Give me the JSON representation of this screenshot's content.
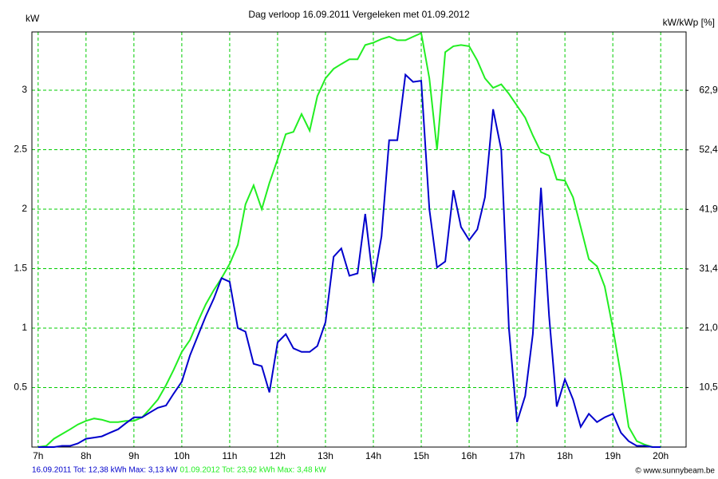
{
  "chart_data": {
    "type": "line",
    "title": "Dag  verloop 16.09.2011   Vergeleken met 01.09.2012",
    "y_label": "kW",
    "y2_label": "kW/kWp [%]",
    "credit": "© www.sunnybeam.be",
    "grid": true,
    "grid_color": "#00cc00",
    "xlim": [
      6.87,
      20.53
    ],
    "ylim": [
      0,
      3.49
    ],
    "y2lim": [
      0,
      73.2
    ],
    "xticks": [
      {
        "value": 7,
        "label": "7h"
      },
      {
        "value": 8,
        "label": "8h"
      },
      {
        "value": 9,
        "label": "9h"
      },
      {
        "value": 10,
        "label": "10h"
      },
      {
        "value": 11,
        "label": "11h"
      },
      {
        "value": 12,
        "label": "12h"
      },
      {
        "value": 13,
        "label": "13h"
      },
      {
        "value": 14,
        "label": "14h"
      },
      {
        "value": 15,
        "label": "15h"
      },
      {
        "value": 16,
        "label": "16h"
      },
      {
        "value": 17,
        "label": "17h"
      },
      {
        "value": 18,
        "label": "18h"
      },
      {
        "value": 19,
        "label": "19h"
      },
      {
        "value": 20,
        "label": "20h"
      }
    ],
    "yticks": [
      0.5,
      1,
      1.5,
      2,
      2.5,
      3
    ],
    "y2ticks": [
      {
        "value": 10.5,
        "label": "10,5"
      },
      {
        "value": 21.0,
        "label": "21,0"
      },
      {
        "value": 31.4,
        "label": "31,4"
      },
      {
        "value": 41.9,
        "label": "41,9"
      },
      {
        "value": 52.4,
        "label": "52,4"
      },
      {
        "value": 62.9,
        "label": "62,9"
      }
    ],
    "x": [
      7,
      7.17,
      7.33,
      7.5,
      7.67,
      7.83,
      8,
      8.17,
      8.33,
      8.5,
      8.67,
      8.83,
      9,
      9.17,
      9.33,
      9.5,
      9.67,
      9.83,
      10,
      10.17,
      10.33,
      10.5,
      10.67,
      10.83,
      11,
      11.17,
      11.33,
      11.5,
      11.67,
      11.83,
      12,
      12.17,
      12.33,
      12.5,
      12.67,
      12.83,
      13,
      13.17,
      13.33,
      13.5,
      13.67,
      13.83,
      14,
      14.17,
      14.33,
      14.5,
      14.67,
      14.83,
      15,
      15.17,
      15.33,
      15.5,
      15.67,
      15.83,
      16,
      16.17,
      16.33,
      16.5,
      16.67,
      16.83,
      17,
      17.17,
      17.33,
      17.5,
      17.67,
      17.83,
      18,
      18.17,
      18.33,
      18.5,
      18.67,
      18.83,
      19,
      19.17,
      19.33,
      19.5,
      19.67,
      19.83,
      20
    ],
    "series": [
      {
        "name": "01.09.2012 Tot: 23,92 kWh Max: 3,48 kW",
        "color": "#22ee22",
        "values": [
          0,
          0.01,
          0.07,
          0.11,
          0.15,
          0.19,
          0.22,
          0.24,
          0.23,
          0.21,
          0.21,
          0.22,
          0.22,
          0.25,
          0.32,
          0.4,
          0.52,
          0.65,
          0.8,
          0.9,
          1.05,
          1.2,
          1.32,
          1.42,
          1.54,
          1.7,
          2.04,
          2.2,
          2.0,
          2.22,
          2.42,
          2.63,
          2.65,
          2.8,
          2.66,
          2.95,
          3.1,
          3.18,
          3.22,
          3.26,
          3.26,
          3.38,
          3.4,
          3.43,
          3.45,
          3.42,
          3.42,
          3.45,
          3.48,
          3.1,
          2.5,
          3.32,
          3.37,
          3.38,
          3.37,
          3.25,
          3.1,
          3.02,
          3.05,
          2.97,
          2.87,
          2.77,
          2.62,
          2.48,
          2.45,
          2.25,
          2.24,
          2.1,
          1.85,
          1.58,
          1.52,
          1.35,
          1.0,
          0.6,
          0.17,
          0.05,
          0.02,
          0,
          0
        ]
      },
      {
        "name": "16.09.2011 Tot: 12,38 kWh Max: 3,13 kW",
        "color": "#0000cc",
        "values": [
          0,
          0,
          0,
          0.01,
          0.01,
          0.03,
          0.07,
          0.08,
          0.09,
          0.12,
          0.15,
          0.2,
          0.25,
          0.25,
          0.29,
          0.33,
          0.35,
          0.45,
          0.55,
          0.77,
          0.93,
          1.1,
          1.25,
          1.42,
          1.39,
          1.0,
          0.97,
          0.7,
          0.68,
          0.46,
          0.88,
          0.95,
          0.83,
          0.8,
          0.8,
          0.85,
          1.05,
          1.6,
          1.67,
          1.44,
          1.46,
          1.96,
          1.38,
          1.77,
          2.58,
          2.58,
          3.13,
          3.07,
          3.08,
          2.0,
          1.51,
          1.56,
          2.16,
          1.85,
          1.74,
          1.83,
          2.1,
          2.84,
          2.5,
          1.0,
          0.21,
          0.43,
          0.95,
          2.18,
          1.1,
          0.34,
          0.57,
          0.4,
          0.17,
          0.28,
          0.21,
          0.25,
          0.28,
          0.12,
          0.05,
          0.01,
          0.01,
          0,
          0
        ]
      }
    ]
  }
}
